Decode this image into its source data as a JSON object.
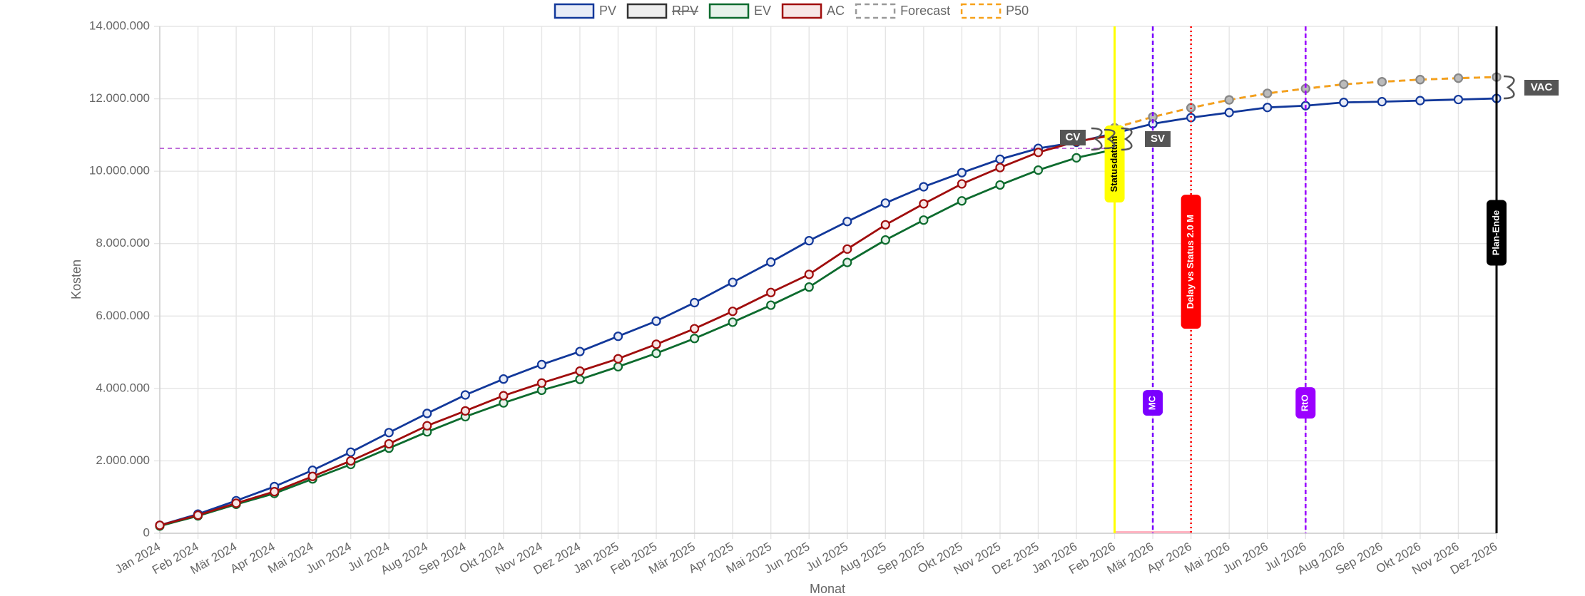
{
  "chart_data": {
    "type": "line",
    "x_label": "Monat",
    "y_label": "Kosten",
    "categories": [
      "Jan 2024",
      "Feb 2024",
      "Mär 2024",
      "Apr 2024",
      "Mai 2024",
      "Jun 2024",
      "Jul 2024",
      "Aug 2024",
      "Sep 2024",
      "Okt 2024",
      "Nov 2024",
      "Dez 2024",
      "Jan 2025",
      "Feb 2025",
      "Mär 2025",
      "Apr 2025",
      "Mai 2025",
      "Jun 2025",
      "Jul 2025",
      "Aug 2025",
      "Sep 2025",
      "Okt 2025",
      "Nov 2025",
      "Dez 2025",
      "Jan 2026",
      "Feb 2026",
      "Mär 2026",
      "Apr 2026",
      "Mai 2026",
      "Jun 2026",
      "Jul 2026",
      "Aug 2026",
      "Sep 2026",
      "Okt 2026",
      "Nov 2026",
      "Dez 2026"
    ],
    "series": [
      {
        "name": "PV",
        "color": "#12389a",
        "fill": "#e8ecf7",
        "dash": false,
        "values": [
          220000,
          530000,
          900000,
          1290000,
          1740000,
          2240000,
          2780000,
          3310000,
          3820000,
          4260000,
          4660000,
          5020000,
          5440000,
          5860000,
          6370000,
          6930000,
          7490000,
          8080000,
          8610000,
          9120000,
          9570000,
          9960000,
          10330000,
          10630000,
          10800000,
          11050000,
          11310000,
          11480000,
          11620000,
          11760000,
          11810000,
          11900000,
          11920000,
          11950000,
          11980000,
          12010000
        ]
      },
      {
        "name": "RPV",
        "color": "#333333",
        "fill": "#eeeeee",
        "dash": false,
        "hidden": true,
        "values": [
          null,
          null,
          null,
          null,
          null,
          null,
          null,
          null,
          null,
          null,
          null,
          null,
          null,
          null,
          null,
          null,
          null,
          null,
          null,
          null,
          null,
          null,
          null,
          null,
          null,
          null,
          null,
          null,
          null,
          null,
          null,
          null,
          null,
          null,
          null,
          null
        ]
      },
      {
        "name": "EV",
        "color": "#0d6b2e",
        "fill": "#e6f2ea",
        "dash": false,
        "values": [
          200000,
          480000,
          800000,
          1100000,
          1500000,
          1900000,
          2350000,
          2800000,
          3220000,
          3600000,
          3950000,
          4250000,
          4600000,
          4970000,
          5380000,
          5830000,
          6300000,
          6800000,
          7480000,
          8100000,
          8650000,
          9180000,
          9620000,
          10030000,
          10370000,
          10600000,
          null,
          null,
          null,
          null,
          null,
          null,
          null,
          null,
          null,
          null
        ]
      },
      {
        "name": "AC",
        "color": "#a00d0d",
        "fill": "#f7e6e6",
        "dash": false,
        "values": [
          220000,
          500000,
          830000,
          1150000,
          1570000,
          2000000,
          2470000,
          2970000,
          3380000,
          3800000,
          4150000,
          4480000,
          4820000,
          5220000,
          5650000,
          6130000,
          6650000,
          7150000,
          7850000,
          8520000,
          9100000,
          9650000,
          10100000,
          10520000,
          10820000,
          11000000,
          null,
          null,
          null,
          null,
          null,
          null,
          null,
          null,
          null,
          null
        ]
      },
      {
        "name": "Forecast",
        "color": "#999999",
        "fill": "#ffffff",
        "dash": true,
        "values": [
          null,
          null,
          null,
          null,
          null,
          null,
          null,
          null,
          null,
          null,
          null,
          null,
          null,
          null,
          null,
          null,
          null,
          null,
          null,
          null,
          null,
          null,
          null,
          null,
          null,
          11200000,
          11500000,
          11750000,
          11970000,
          12150000,
          12280000,
          12400000,
          12470000,
          12530000,
          12570000,
          12600000
        ]
      },
      {
        "name": "P50",
        "color": "#f7a11a",
        "fill": "#ffffff",
        "dash": true,
        "values": [
          null,
          null,
          null,
          null,
          null,
          null,
          null,
          null,
          null,
          null,
          null,
          null,
          null,
          null,
          null,
          null,
          null,
          null,
          null,
          null,
          null,
          null,
          null,
          null,
          null,
          11200000,
          11500000,
          11750000,
          11970000,
          12150000,
          12280000,
          12400000,
          12470000,
          12530000,
          12570000,
          12600000
        ]
      }
    ],
    "ylim": [
      0,
      14000000
    ],
    "yticks": [
      0,
      {
        "value": 2000000,
        "label": "2.000.000"
      },
      {
        "value": 4000000,
        "label": "4.000.000"
      },
      {
        "value": 6000000,
        "label": "6.000.000"
      },
      {
        "value": 8000000,
        "label": "8.000.000"
      },
      {
        "value": 10000000,
        "label": "10.000.000"
      },
      {
        "value": 12000000,
        "label": "12.000.000"
      },
      {
        "value": 14000000,
        "label": "14.000.000"
      }
    ],
    "grid": true,
    "hline": {
      "value": 10630000,
      "color": "#b04fd0"
    },
    "vlines": [
      {
        "label": "Statusdatum",
        "x": "Feb 2026",
        "color": "#ffff00",
        "text_color": "#000000",
        "style": "solid",
        "label_y": 10200000
      },
      {
        "label": "MC",
        "x": "Mär 2026",
        "color": "#7a00ff",
        "text_color": "#ffffff",
        "style": "dashed",
        "label_y": 3600000
      },
      {
        "label": "Delay vs Status 2.0 M",
        "x": "Apr 2026",
        "color": "#ff0000",
        "text_color": "#ffffff",
        "style": "dotted",
        "label_y": 7500000
      },
      {
        "label": "RtO",
        "x": "Jul 2026",
        "color": "#9b00ff",
        "text_color": "#ffffff",
        "style": "dashed",
        "label_y": 3600000
      },
      {
        "label": "Plan-Ende",
        "x": "Dez 2026",
        "color": "#000000",
        "text_color": "#ffffff",
        "style": "solid",
        "label_y": 8300000
      }
    ],
    "annotations": [
      "CV",
      "SV",
      "VAC"
    ]
  }
}
